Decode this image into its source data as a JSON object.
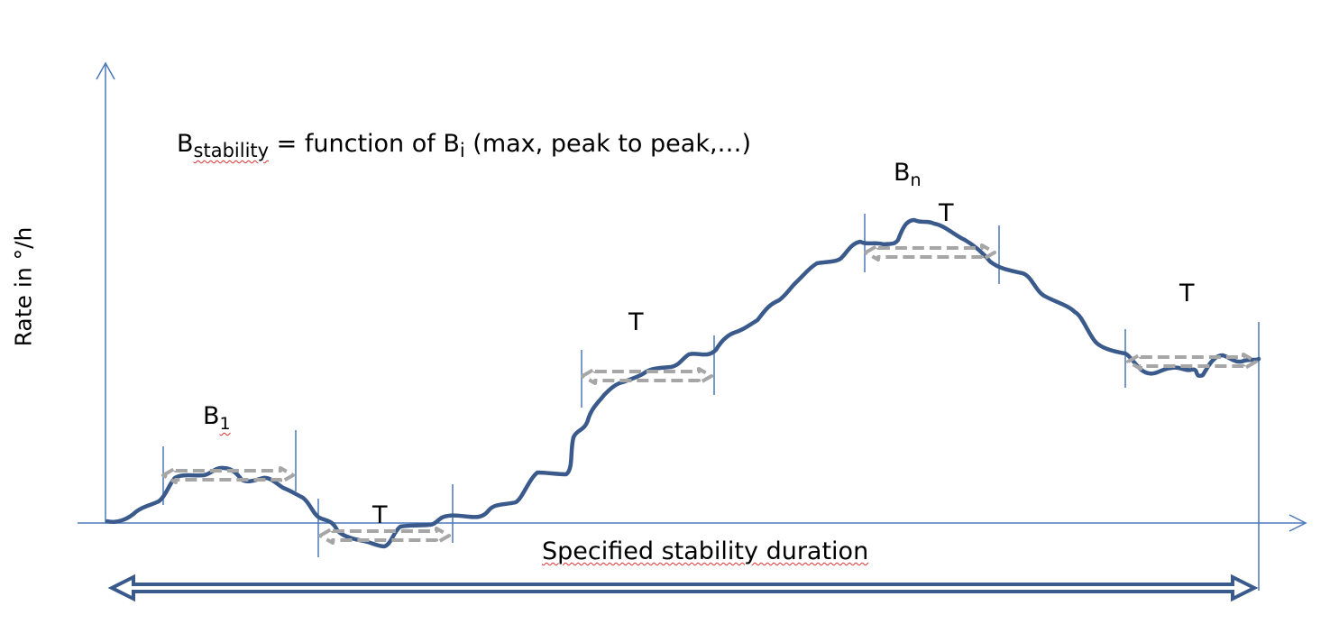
{
  "formula": {
    "b_main": "B",
    "b_sub": "stability",
    "rest": " = function of B",
    "i_sub": "i",
    "tail": " (max, peak to peak,…)"
  },
  "y_axis_label": "Rate in °/h",
  "x_axis_label": "Specified stability duration",
  "labels": {
    "b1_main": "B",
    "b1_sub": "1",
    "bn_main": "B",
    "bn_sub": "n",
    "t_label": "T"
  },
  "colors": {
    "axis": "#4a78b8",
    "curve": "#3a5a8c",
    "window_arrow": "#a6a6a6",
    "duration_arrow": "#3a5a8c"
  }
}
